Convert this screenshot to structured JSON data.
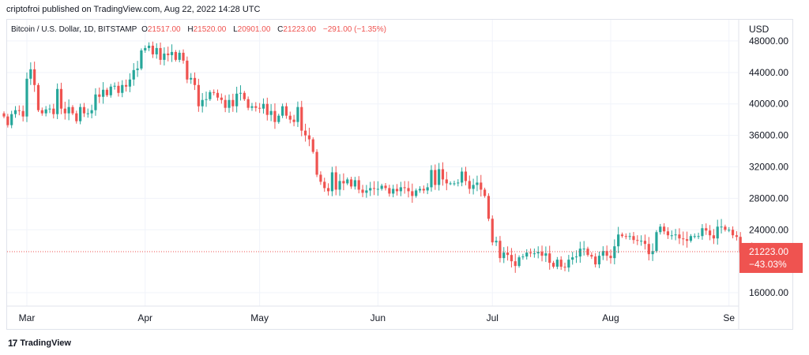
{
  "header": {
    "published": "criptofroi published on TradingView.com, Aug 22, 2022 14:28 UTC"
  },
  "legend": {
    "symbol": "Bitcoin / U.S. Dollar, 1D, BITSTAMP",
    "open_label": "O",
    "open": "21517.00",
    "high_label": "H",
    "high": "21520.00",
    "low_label": "L",
    "low": "20901.00",
    "close_label": "C",
    "close": "21223.00",
    "change": "−291.00 (−1.35%)"
  },
  "footer": {
    "brand": "TradingView",
    "brand_mark": "17"
  },
  "chart_data": {
    "type": "candlestick",
    "currency": "USD",
    "ylim": [
      14300,
      50700
    ],
    "yticks": [
      "48000.00",
      "44000.00",
      "40000.00",
      "36000.00",
      "32000.00",
      "28000.00",
      "24000.00",
      "16000.00"
    ],
    "ytick_values": [
      48000,
      44000,
      40000,
      36000,
      32000,
      28000,
      24000,
      16000
    ],
    "x_start": "2022-02-23",
    "xticks": [
      {
        "label": "Mar",
        "date": "2022-03-01"
      },
      {
        "label": "Apr",
        "date": "2022-04-01"
      },
      {
        "label": "May",
        "date": "2022-05-01"
      },
      {
        "label": "Jun",
        "date": "2022-06-01"
      },
      {
        "label": "Jul",
        "date": "2022-07-01"
      },
      {
        "label": "Aug",
        "date": "2022-08-01"
      },
      {
        "label": "Se",
        "date": "2022-09-01"
      }
    ],
    "last_price": "21223.00",
    "last_price_value": 21223,
    "last_change_pct": "−43.03%",
    "up_color": "#26a69a",
    "down_color": "#ef5350",
    "closes": [
      38400,
      37300,
      38700,
      39200,
      39100,
      38400,
      43200,
      44400,
      42400,
      39200,
      38800,
      39300,
      39400,
      38700,
      41900,
      39400,
      38800,
      39600,
      38800,
      37800,
      39600,
      38800,
      38800,
      39200,
      41200,
      40900,
      41800,
      41100,
      42200,
      42300,
      41400,
      42400,
      42200,
      43100,
      44300,
      44500,
      46800,
      47100,
      47400,
      46300,
      47100,
      45600,
      46400,
      46200,
      46600,
      45600,
      46500,
      45500,
      43100,
      43300,
      42400,
      39700,
      40500,
      40600,
      41500,
      41400,
      40800,
      40500,
      39500,
      40500,
      39700,
      41300,
      41400,
      40600,
      39500,
      39700,
      39500,
      39400,
      40000,
      38600,
      39100,
      37700,
      38500,
      39700,
      38500,
      38000,
      37700,
      39600,
      36600,
      36000,
      35500,
      33900,
      31000,
      30100,
      29300,
      28900,
      31300,
      29100,
      30200,
      29900,
      30400,
      29500,
      30300,
      29100,
      28700,
      29000,
      29300,
      29200,
      29200,
      29600,
      29300,
      28600,
      29200,
      28900,
      29400,
      29300,
      28900,
      28300,
      29000,
      29200,
      29000,
      29400,
      31600,
      29700,
      31700,
      30400,
      29900,
      29900,
      29900,
      30000,
      31400,
      30200,
      29200,
      29700,
      30000,
      29100,
      28300,
      25400,
      22400,
      22600,
      20400,
      21100,
      20800,
      20000,
      19400,
      20500,
      20600,
      21100,
      21000,
      21000,
      21200,
      20700,
      21000,
      19800,
      19300,
      20200,
      19300,
      19200,
      20200,
      20500,
      20600,
      21600,
      21600,
      20800,
      20600,
      19600,
      20700,
      21300,
      20700,
      20400,
      21900,
      23400,
      23200,
      23100,
      23200,
      22700,
      22600,
      22600,
      22200,
      20900,
      21300,
      23700,
      24400,
      23800,
      23300,
      23300,
      23400,
      22900,
      22800,
      22600,
      23200,
      23200,
      23200,
      24200,
      23900,
      23300,
      22900,
      24400,
      24400,
      24000,
      24000,
      23300,
      23100,
      21100,
      21300,
      21500,
      21223
    ]
  }
}
